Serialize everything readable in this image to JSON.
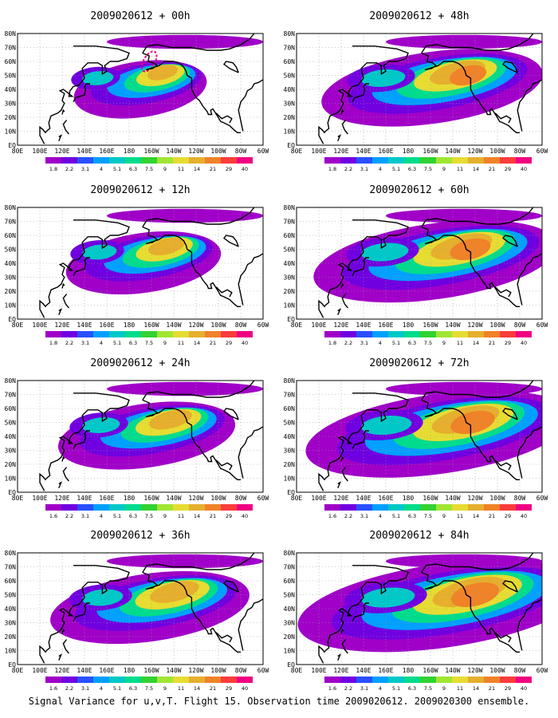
{
  "figure_caption": "Signal Variance for u,v,T. Flight 15. Observation time 2009020612. 2009020300 ensemble.",
  "colors": {
    "palette": [
      "#a000c8",
      "#7000e0",
      "#2850ff",
      "#00a0ff",
      "#00c8c8",
      "#00dc8c",
      "#32d232",
      "#a0e632",
      "#e6dc32",
      "#e6af2d",
      "#f08228",
      "#fa3c3c",
      "#f00082"
    ],
    "land_outline": "#000000",
    "grid": "#999999"
  },
  "chart_data": [
    {
      "type": "heatmap",
      "title": "2009020612 + 00h",
      "lead_hours": 0,
      "xlim_deg": [
        80,
        300
      ],
      "ylim_deg": [
        0,
        80
      ],
      "x_ticks": [
        "80E",
        "100E",
        "120E",
        "140E",
        "160E",
        "180",
        "160W",
        "140W",
        "120W",
        "100W",
        "80W",
        "60W"
      ],
      "y_ticks": [
        "EQ",
        "10N",
        "20N",
        "30N",
        "40N",
        "50N",
        "60N",
        "70N",
        "80N"
      ],
      "colorbar": [
        "1.8",
        "2.2",
        "3.1",
        "4",
        "5.1",
        "6.3",
        "7.5",
        "9",
        "11",
        "14",
        "21",
        "29",
        "40"
      ],
      "peak_region": "Gulf of Alaska"
    },
    {
      "type": "heatmap",
      "title": "2009020612 + 12h",
      "lead_hours": 12,
      "xlim_deg": [
        80,
        300
      ],
      "ylim_deg": [
        0,
        80
      ],
      "x_ticks": [
        "80E",
        "100E",
        "120E",
        "140E",
        "160E",
        "180",
        "160W",
        "140W",
        "120W",
        "100W",
        "80W",
        "60W"
      ],
      "y_ticks": [
        "EQ",
        "10N",
        "20N",
        "30N",
        "40N",
        "50N",
        "60N",
        "70N",
        "80N"
      ],
      "colorbar": [
        "1.8",
        "2.2",
        "3.1",
        "4",
        "5.1",
        "6.3",
        "7.5",
        "9",
        "11",
        "14",
        "21",
        "29",
        "40"
      ],
      "peak_region": "Gulf of Alaska"
    },
    {
      "type": "heatmap",
      "title": "2009020612 + 24h",
      "lead_hours": 24,
      "xlim_deg": [
        80,
        300
      ],
      "ylim_deg": [
        0,
        80
      ],
      "x_ticks": [
        "80E",
        "100E",
        "120E",
        "140E",
        "160E",
        "180",
        "160W",
        "140W",
        "120W",
        "100W",
        "80W",
        "60W"
      ],
      "y_ticks": [
        "EQ",
        "10N",
        "20N",
        "30N",
        "40N",
        "50N",
        "60N",
        "70N",
        "80N"
      ],
      "colorbar": [
        "1.6",
        "2.2",
        "3.1",
        "4",
        "5.1",
        "6.3",
        "7.5",
        "9",
        "11",
        "14",
        "21",
        "29",
        "40"
      ],
      "peak_region": "Gulf of Alaska"
    },
    {
      "type": "heatmap",
      "title": "2009020612 + 36h",
      "lead_hours": 36,
      "xlim_deg": [
        80,
        300
      ],
      "ylim_deg": [
        0,
        80
      ],
      "x_ticks": [
        "80E",
        "100E",
        "120E",
        "140E",
        "160E",
        "180",
        "160W",
        "140W",
        "120W",
        "100W",
        "80W",
        "60W"
      ],
      "y_ticks": [
        "EQ",
        "10N",
        "20N",
        "30N",
        "40N",
        "50N",
        "60N",
        "70N",
        "80N"
      ],
      "colorbar": [
        "1.6",
        "2.2",
        "3.1",
        "4",
        "5.1",
        "6.3",
        "7.5",
        "9",
        "11",
        "14",
        "21",
        "29",
        "40"
      ],
      "peak_region": "Gulf of Alaska"
    },
    {
      "type": "heatmap",
      "title": "2009020612 + 48h",
      "lead_hours": 48,
      "xlim_deg": [
        80,
        300
      ],
      "ylim_deg": [
        0,
        80
      ],
      "x_ticks": [
        "80E",
        "100E",
        "120E",
        "140E",
        "160E",
        "180",
        "160W",
        "140W",
        "120W",
        "100W",
        "80W",
        "60W"
      ],
      "y_ticks": [
        "EQ",
        "10N",
        "20N",
        "30N",
        "40N",
        "50N",
        "60N",
        "70N",
        "80N"
      ],
      "colorbar": [
        "1.8",
        "2.2",
        "3.1",
        "4",
        "5.1",
        "6.3",
        "7.5",
        "9",
        "11",
        "14",
        "21",
        "29",
        "40"
      ],
      "peak_region": "Alaska / western North America"
    },
    {
      "type": "heatmap",
      "title": "2009020612 + 60h",
      "lead_hours": 60,
      "xlim_deg": [
        80,
        300
      ],
      "ylim_deg": [
        0,
        80
      ],
      "x_ticks": [
        "80E",
        "100E",
        "120E",
        "140E",
        "160E",
        "180",
        "160W",
        "140W",
        "120W",
        "100W",
        "80W",
        "60W"
      ],
      "y_ticks": [
        "EQ",
        "10N",
        "20N",
        "30N",
        "40N",
        "50N",
        "60N",
        "70N",
        "80N"
      ],
      "colorbar": [
        "1.8",
        "2.2",
        "3.1",
        "4",
        "5.1",
        "6.3",
        "7.5",
        "9",
        "11",
        "14",
        "21",
        "29",
        "40"
      ],
      "peak_region": "Alaska / western North America"
    },
    {
      "type": "heatmap",
      "title": "2009020612 + 72h",
      "lead_hours": 72,
      "xlim_deg": [
        80,
        300
      ],
      "ylim_deg": [
        0,
        80
      ],
      "x_ticks": [
        "80E",
        "100E",
        "120E",
        "140E",
        "160E",
        "180",
        "160W",
        "140W",
        "120W",
        "100W",
        "80W",
        "60W"
      ],
      "y_ticks": [
        "EQ",
        "10N",
        "20N",
        "30N",
        "40N",
        "50N",
        "60N",
        "70N",
        "80N"
      ],
      "colorbar": [
        "1.6",
        "2.2",
        "3.1",
        "4",
        "5.1",
        "6.3",
        "7.5",
        "9",
        "11",
        "14",
        "21",
        "29",
        "40"
      ],
      "peak_region": "North America"
    },
    {
      "type": "heatmap",
      "title": "2009020612 + 84h",
      "lead_hours": 84,
      "xlim_deg": [
        80,
        300
      ],
      "ylim_deg": [
        0,
        80
      ],
      "x_ticks": [
        "80E",
        "100E",
        "120E",
        "140E",
        "160E",
        "180",
        "160W",
        "140W",
        "120W",
        "100W",
        "80W",
        "60W"
      ],
      "y_ticks": [
        "EQ",
        "10N",
        "20N",
        "30N",
        "40N",
        "50N",
        "60N",
        "70N",
        "80N"
      ],
      "colorbar": [
        "1.6",
        "2.2",
        "3.1",
        "4",
        "5.1",
        "6.3",
        "7.5",
        "9",
        "11",
        "14",
        "21",
        "29",
        "40"
      ],
      "peak_region": "North America"
    }
  ]
}
